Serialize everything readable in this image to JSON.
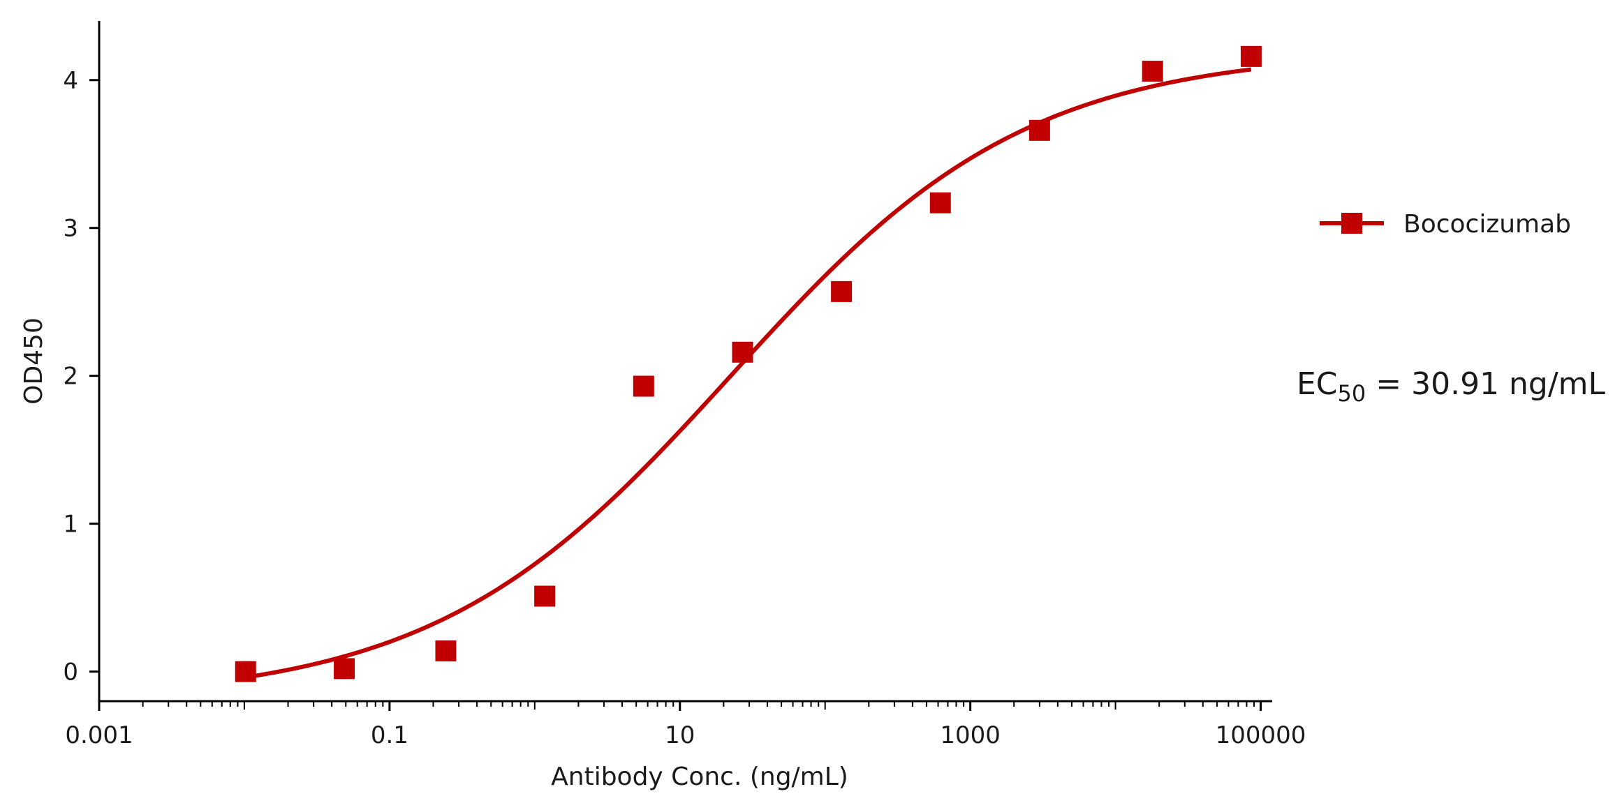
{
  "chart_data": {
    "type": "scatter",
    "title": "",
    "xlabel": "Antibody Conc. (ng/mL)",
    "ylabel": "OD450",
    "x_scale": "log",
    "xlim": [
      0.001,
      120000
    ],
    "ylim": [
      -0.2,
      4.4
    ],
    "x_ticks": [
      {
        "value": 0.001,
        "label": "0.001"
      },
      {
        "value": 0.1,
        "label": "0.1"
      },
      {
        "value": 10,
        "label": "10"
      },
      {
        "value": 1000,
        "label": "1000"
      },
      {
        "value": 100000,
        "label": "100000"
      }
    ],
    "y_ticks": [
      {
        "value": 0,
        "label": "0"
      },
      {
        "value": 1,
        "label": "1"
      },
      {
        "value": 2,
        "label": "2"
      },
      {
        "value": 3,
        "label": "3"
      },
      {
        "value": 4,
        "label": "4"
      }
    ],
    "grid": false,
    "legend_position": "right",
    "series": [
      {
        "name": "Bococizumab",
        "color": "#c00000",
        "marker": "square",
        "x": [
          0.0102,
          0.0488,
          0.2441,
          1.1719,
          5.625,
          27.0,
          129.6,
          622.08,
          3000,
          18000,
          86000
        ],
        "y": [
          0.0,
          0.02,
          0.14,
          0.51,
          1.93,
          2.16,
          2.57,
          3.17,
          3.66,
          4.06,
          4.16
        ],
        "fit": {
          "type": "4PL",
          "x_range": [
            0.0102,
            86000
          ]
        }
      }
    ],
    "annotations": [
      {
        "prefix": "EC",
        "subscript": "50",
        "text": " = 30.91 ng/mL"
      }
    ]
  }
}
